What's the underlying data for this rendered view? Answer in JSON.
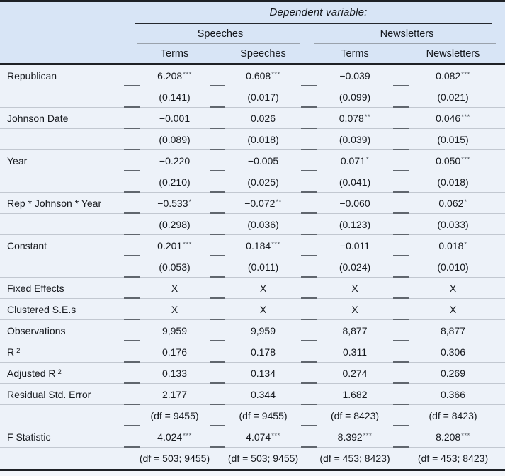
{
  "colors": {
    "header_bg": "#d8e5f6",
    "body_bg": "#edf2f9",
    "rule_dark": "#1e2126",
    "sep": "#c2c8d1",
    "tick": "#60666e",
    "thin": "#9aa2ac",
    "text": "#15181d",
    "stars": "#50565e",
    "below_bg": "#f3f6fb"
  },
  "table": {
    "dep_var_label": "Dependent variable:",
    "groups": [
      "Speeches",
      "Newsletters"
    ],
    "columns": [
      "Terms",
      "Speeches",
      "Terms",
      "Newsletters"
    ],
    "rows": [
      {
        "label": "Republican",
        "cells": [
          {
            "v": "6.208",
            "s": "***"
          },
          {
            "v": "0.608",
            "s": "***"
          },
          {
            "v": "−0.039"
          },
          {
            "v": "0.082",
            "s": "***"
          }
        ]
      },
      {
        "label": "",
        "cells": [
          {
            "v": "(0.141)"
          },
          {
            "v": "(0.017)"
          },
          {
            "v": "(0.099)"
          },
          {
            "v": "(0.021)"
          }
        ]
      },
      {
        "label": "Johnson Date",
        "cells": [
          {
            "v": "−0.001"
          },
          {
            "v": "0.026"
          },
          {
            "v": "0.078",
            "s": "**"
          },
          {
            "v": "0.046",
            "s": "***"
          }
        ]
      },
      {
        "label": "",
        "cells": [
          {
            "v": "(0.089)"
          },
          {
            "v": "(0.018)"
          },
          {
            "v": "(0.039)"
          },
          {
            "v": "(0.015)"
          }
        ]
      },
      {
        "label": "Year",
        "cells": [
          {
            "v": "−0.220"
          },
          {
            "v": "−0.005"
          },
          {
            "v": "0.071",
            "s": "*"
          },
          {
            "v": "0.050",
            "s": "***"
          }
        ]
      },
      {
        "label": "",
        "cells": [
          {
            "v": "(0.210)"
          },
          {
            "v": "(0.025)"
          },
          {
            "v": "(0.041)"
          },
          {
            "v": "(0.018)"
          }
        ]
      },
      {
        "label": "Rep * Johnson * Year",
        "cells": [
          {
            "v": "−0.533",
            "s": "*"
          },
          {
            "v": "−0.072",
            "s": "**"
          },
          {
            "v": "−0.060"
          },
          {
            "v": "0.062",
            "s": "*"
          }
        ]
      },
      {
        "label": "",
        "cells": [
          {
            "v": "(0.298)"
          },
          {
            "v": "(0.036)"
          },
          {
            "v": "(0.123)"
          },
          {
            "v": "(0.033)"
          }
        ]
      },
      {
        "label": "Constant",
        "cells": [
          {
            "v": "0.201",
            "s": "***"
          },
          {
            "v": "0.184",
            "s": "***"
          },
          {
            "v": "−0.011"
          },
          {
            "v": "0.018",
            "s": "*"
          }
        ]
      },
      {
        "label": "",
        "cells": [
          {
            "v": "(0.053)"
          },
          {
            "v": "(0.011)"
          },
          {
            "v": "(0.024)"
          },
          {
            "v": "(0.010)"
          }
        ]
      },
      {
        "label": "Fixed Effects",
        "cells": [
          {
            "v": "X"
          },
          {
            "v": "X"
          },
          {
            "v": "X"
          },
          {
            "v": "X"
          }
        ]
      },
      {
        "label": "Clustered S.E.s",
        "cells": [
          {
            "v": "X"
          },
          {
            "v": "X"
          },
          {
            "v": "X"
          },
          {
            "v": "X"
          }
        ]
      },
      {
        "label": "Observations",
        "cells": [
          {
            "v": "9,959"
          },
          {
            "v": "9,959"
          },
          {
            "v": "8,877"
          },
          {
            "v": "8,877"
          }
        ]
      },
      {
        "label": "R",
        "sup": "2",
        "cells": [
          {
            "v": "0.176"
          },
          {
            "v": "0.178"
          },
          {
            "v": "0.311"
          },
          {
            "v": "0.306"
          }
        ]
      },
      {
        "label": "Adjusted R",
        "sup": "2",
        "cells": [
          {
            "v": "0.133"
          },
          {
            "v": "0.134"
          },
          {
            "v": "0.274"
          },
          {
            "v": "0.269"
          }
        ]
      },
      {
        "label": "Residual Std. Error",
        "cells": [
          {
            "v": "2.177"
          },
          {
            "v": "0.344"
          },
          {
            "v": "1.682"
          },
          {
            "v": "0.366"
          }
        ]
      },
      {
        "label": "",
        "cells": [
          {
            "v": "(df = 9455)"
          },
          {
            "v": "(df = 9455)"
          },
          {
            "v": "(df = 8423)"
          },
          {
            "v": "(df = 8423)"
          }
        ]
      },
      {
        "label": "F Statistic",
        "cells": [
          {
            "v": "4.024",
            "s": "***"
          },
          {
            "v": "4.074",
            "s": "***"
          },
          {
            "v": "8.392",
            "s": "***"
          },
          {
            "v": "8.208",
            "s": "***"
          }
        ]
      },
      {
        "label": "",
        "cells": [
          {
            "v": "(df = 503; 9455)"
          },
          {
            "v": "(df = 503; 9455)"
          },
          {
            "v": "(df = 453; 8423)"
          },
          {
            "v": "(df = 453; 8423)"
          }
        ]
      }
    ]
  }
}
